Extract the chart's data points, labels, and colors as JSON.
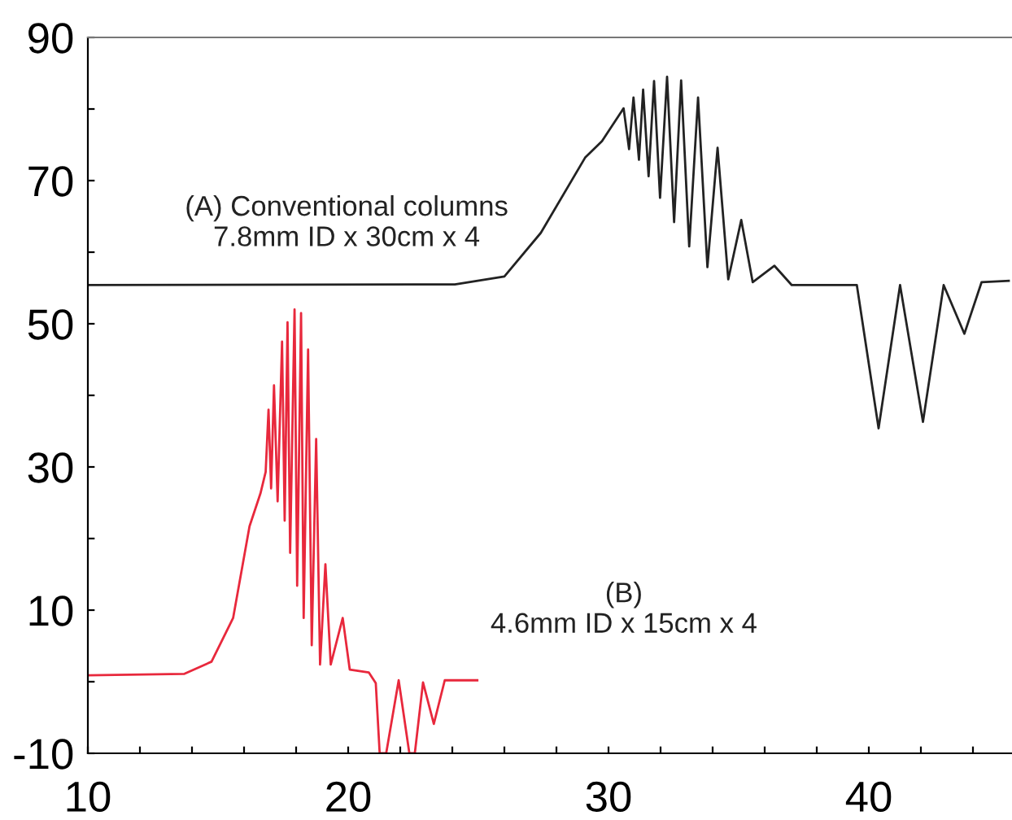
{
  "chart_data": {
    "type": "line",
    "xlim": [
      10,
      45.5
    ],
    "ylim": [
      -10,
      90
    ],
    "xticks": [
      10,
      {
        "value": 12,
        "label": null
      },
      {
        "value": 14,
        "label": null
      },
      {
        "value": 16,
        "label": null
      },
      {
        "value": 18,
        "label": null
      },
      20,
      {
        "value": 22,
        "label": null
      },
      {
        "value": 24,
        "label": null
      },
      {
        "value": 26,
        "label": null
      },
      {
        "value": 28,
        "label": null
      },
      30,
      {
        "value": 32,
        "label": null
      },
      {
        "value": 34,
        "label": null
      },
      {
        "value": 36,
        "label": null
      },
      {
        "value": 38,
        "label": null
      },
      40,
      {
        "value": 42,
        "label": null
      },
      {
        "value": 44,
        "label": null
      }
    ],
    "yticks": [
      -10,
      {
        "value": 0,
        "label": null
      },
      10,
      {
        "value": 20,
        "label": null
      },
      30,
      {
        "value": 40,
        "label": null
      },
      50,
      {
        "value": 60,
        "label": null
      },
      70,
      {
        "value": 80,
        "label": null
      },
      90
    ],
    "grid": false,
    "legend": false,
    "annotations": [
      "(A) Conventional columns\n7.8mm ID x 30cm x 4",
      "(B)\n4.6mm ID x 15cm x 4"
    ],
    "series": [
      {
        "color": "#222222",
        "x": [
          10,
          24.1,
          26.0,
          27.4,
          29.1,
          29.75,
          30.58,
          30.79,
          30.96,
          31.17,
          31.33,
          31.54,
          31.75,
          31.98,
          32.25,
          32.52,
          32.79,
          33.1,
          33.44,
          33.8,
          34.19,
          34.6,
          35.1,
          35.54,
          36.375,
          37.04,
          39.54,
          40.375,
          41.2,
          42.08,
          42.875,
          43.67,
          44.33,
          45.375
        ],
        "values": [
          55.4,
          55.5,
          56.6,
          62.7,
          73.2,
          75.5,
          80.1,
          74.4,
          81.6,
          72.9,
          82.7,
          70.6,
          83.9,
          67.6,
          84.5,
          64.2,
          84.0,
          60.8,
          81.6,
          57.9,
          74.6,
          56.2,
          64.5,
          55.8,
          58.1,
          55.4,
          55.4,
          35.4,
          55.4,
          36.3,
          55.4,
          48.6,
          55.8,
          56.0
        ]
      },
      {
        "color": "#e8283c",
        "x": [
          10.06,
          13.71,
          14.75,
          15.58,
          16.21,
          16.63,
          16.83,
          16.94,
          17.04,
          17.15,
          17.29,
          17.46,
          17.56,
          17.67,
          17.77,
          17.94,
          18.04,
          18.19,
          18.29,
          18.46,
          18.6,
          18.77,
          18.92,
          19.125,
          19.33,
          19.79,
          20.06,
          20.79,
          21.06,
          21.21,
          21.46,
          21.94,
          22.35,
          22.56,
          22.875,
          23.29,
          23.71,
          24.96
        ],
        "values": [
          0.9,
          1.1,
          2.8,
          8.9,
          21.7,
          26.3,
          29.3,
          38.0,
          27.0,
          41.4,
          25.2,
          47.5,
          22.5,
          50.2,
          18.0,
          52.0,
          13.4,
          51.5,
          8.9,
          46.4,
          5.1,
          33.9,
          2.4,
          16.4,
          2.4,
          8.9,
          1.7,
          1.3,
          -0.2,
          -10,
          -10,
          0.2,
          -10,
          -10,
          -0.1,
          -5.9,
          0.2,
          0.2
        ]
      }
    ]
  }
}
